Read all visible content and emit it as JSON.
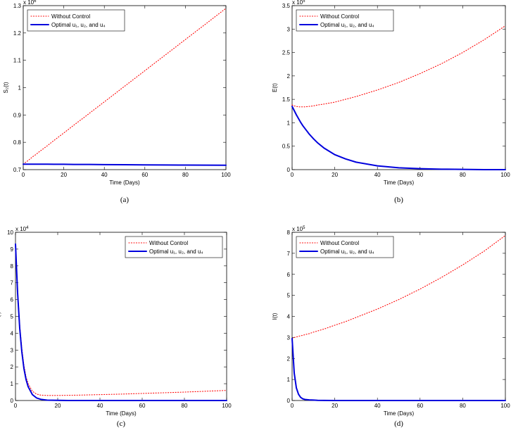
{
  "chart_data": [
    {
      "type": "line",
      "caption": "(a)",
      "xlabel": "Time (Days)",
      "ylabel": "S₂(t)",
      "y_offset_text": "x 10",
      "y_offset_power": "6",
      "x": [
        0,
        1,
        2,
        3,
        4,
        5,
        6,
        8,
        10,
        12,
        15,
        20,
        25,
        30,
        40,
        50,
        60,
        70,
        80,
        90,
        100
      ],
      "series": [
        {
          "name": "Without Control",
          "color": "#ff0000",
          "style": "dotted",
          "values": [
            0.72,
            0.726,
            0.731,
            0.737,
            0.743,
            0.749,
            0.754,
            0.766,
            0.777,
            0.788,
            0.806,
            0.834,
            0.863,
            0.891,
            0.948,
            1.005,
            1.062,
            1.119,
            1.176,
            1.233,
            1.29
          ]
        },
        {
          "name": "Optimal u₁, u₂, and u₄",
          "color": "#0000dd",
          "style": "solid",
          "values": [
            0.72,
            0.72,
            0.72,
            0.72,
            0.72,
            0.72,
            0.72,
            0.72,
            0.72,
            0.72,
            0.7195,
            0.7195,
            0.719,
            0.719,
            0.7185,
            0.718,
            0.7175,
            0.717,
            0.7168,
            0.7165,
            0.716
          ]
        }
      ],
      "xlim": [
        0,
        100
      ],
      "xticks": [
        0,
        20,
        40,
        60,
        80,
        100
      ],
      "ylim": [
        0.7,
        1.3
      ],
      "yticks": [
        0.7,
        0.8,
        0.9,
        1,
        1.1,
        1.2,
        1.3
      ],
      "legend": "upper left"
    },
    {
      "type": "line",
      "caption": "(b)",
      "xlabel": "Time (Days)",
      "ylabel": "E(t)",
      "y_offset_text": "x 10",
      "y_offset_power": "5",
      "x": [
        0,
        1,
        2,
        3,
        4,
        5,
        6,
        8,
        10,
        12,
        15,
        20,
        25,
        30,
        40,
        50,
        60,
        70,
        80,
        90,
        100
      ],
      "series": [
        {
          "name": "Without Control",
          "color": "#ff0000",
          "style": "dotted",
          "values": [
            1.38,
            1.36,
            1.35,
            1.34,
            1.34,
            1.34,
            1.34,
            1.35,
            1.36,
            1.38,
            1.4,
            1.44,
            1.5,
            1.56,
            1.7,
            1.86,
            2.05,
            2.26,
            2.5,
            2.77,
            3.07
          ]
        },
        {
          "name": "Optimal u₁, u₂, and u₄",
          "color": "#0000dd",
          "style": "solid",
          "values": [
            1.35,
            1.26,
            1.17,
            1.09,
            1.01,
            0.94,
            0.88,
            0.76,
            0.66,
            0.57,
            0.46,
            0.32,
            0.23,
            0.16,
            0.08,
            0.04,
            0.02,
            0.01,
            0.005,
            0,
            0
          ]
        }
      ],
      "xlim": [
        0,
        100
      ],
      "xticks": [
        0,
        20,
        40,
        60,
        80,
        100
      ],
      "ylim": [
        0,
        3.5
      ],
      "yticks": [
        0,
        0.5,
        1,
        1.5,
        2,
        2.5,
        3,
        3.5
      ],
      "legend": "upper left"
    },
    {
      "type": "line",
      "caption": "(c)",
      "xlabel": "Time (Days)",
      "ylabel": "A(t)",
      "y_offset_text": "x 10",
      "y_offset_power": "4",
      "x": [
        0,
        1,
        2,
        3,
        4,
        5,
        6,
        8,
        10,
        12,
        15,
        20,
        25,
        30,
        40,
        50,
        60,
        70,
        80,
        90,
        100
      ],
      "series": [
        {
          "name": "Without Control",
          "color": "#ff0000",
          "style": "dotted",
          "values": [
            9.3,
            6.6,
            4.5,
            3.1,
            2.1,
            1.4,
            1.0,
            0.55,
            0.38,
            0.32,
            0.3,
            0.3,
            0.31,
            0.32,
            0.35,
            0.38,
            0.42,
            0.46,
            0.5,
            0.55,
            0.6
          ]
        },
        {
          "name": "Optimal u₁, u₂, and u₄",
          "color": "#0000dd",
          "style": "solid",
          "values": [
            9.3,
            6.4,
            4.3,
            2.9,
            1.9,
            1.25,
            0.82,
            0.35,
            0.15,
            0.07,
            0.02,
            0.01,
            0,
            0,
            0,
            0,
            0,
            0,
            0,
            0,
            0
          ]
        }
      ],
      "xlim": [
        0,
        100
      ],
      "xticks": [
        0,
        20,
        40,
        60,
        80,
        100
      ],
      "ylim": [
        0,
        10
      ],
      "yticks": [
        0,
        1,
        2,
        3,
        4,
        5,
        6,
        7,
        8,
        9,
        10
      ],
      "legend": "upper right"
    },
    {
      "type": "line",
      "caption": "(d)",
      "xlabel": "Time (Days)",
      "ylabel": "I(t)",
      "y_offset_text": "x 10",
      "y_offset_power": "5",
      "x": [
        0,
        1,
        2,
        3,
        4,
        5,
        6,
        8,
        10,
        12,
        15,
        20,
        25,
        30,
        40,
        50,
        60,
        70,
        80,
        90,
        100
      ],
      "series": [
        {
          "name": "Without Control",
          "color": "#ff0000",
          "style": "dotted",
          "values": [
            2.95,
            3.0,
            3.02,
            3.05,
            3.08,
            3.1,
            3.13,
            3.18,
            3.25,
            3.31,
            3.4,
            3.58,
            3.75,
            3.95,
            4.35,
            4.8,
            5.3,
            5.85,
            6.45,
            7.1,
            7.85
          ]
        },
        {
          "name": "Optimal u₁, u₂, and u₄",
          "color": "#0000dd",
          "style": "solid",
          "values": [
            2.95,
            1.3,
            0.6,
            0.3,
            0.15,
            0.08,
            0.05,
            0.03,
            0.02,
            0.01,
            0.005,
            0,
            0,
            0,
            0,
            0,
            0,
            0,
            0,
            0,
            0
          ]
        }
      ],
      "xlim": [
        0,
        100
      ],
      "xticks": [
        0,
        20,
        40,
        60,
        80,
        100
      ],
      "ylim": [
        0,
        8
      ],
      "yticks": [
        0,
        1,
        2,
        3,
        4,
        5,
        6,
        7,
        8
      ],
      "legend": "upper left"
    }
  ]
}
